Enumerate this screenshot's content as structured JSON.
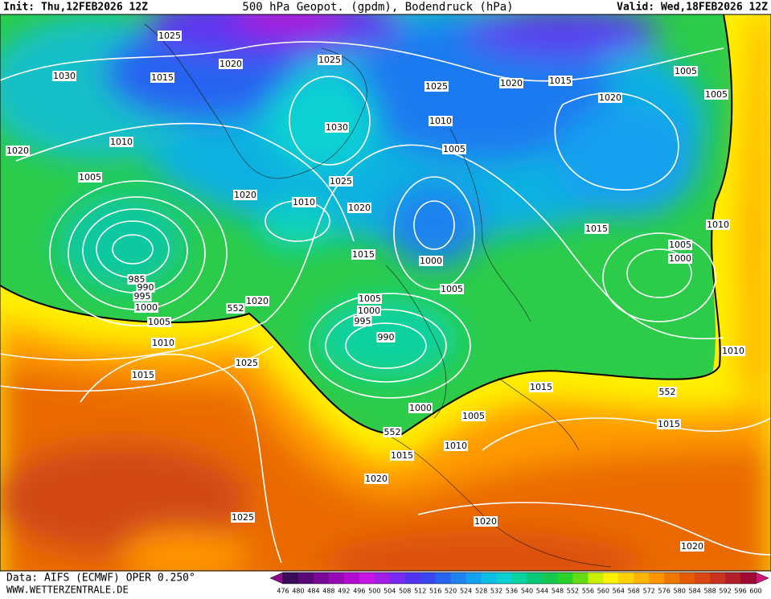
{
  "header": {
    "init": "Init: Thu,12FEB2026 12Z",
    "title": "500 hPa Geopot. (gpdm), Bodendruck (hPa)",
    "valid": "Valid: Wed,18FEB2026 12Z"
  },
  "footer": {
    "data": "Data: AIFS (ECMWF) OPER 0.250°",
    "site": "WWW.WETTERZENTRALE.DE"
  },
  "isobar_labels": [
    1025,
    1020,
    1015,
    1030,
    1025,
    1025,
    1020,
    1015,
    1005,
    1005,
    1020,
    1010,
    1030,
    1005,
    1020,
    1010,
    1005,
    1025,
    1020,
    1010,
    1020,
    1015,
    1010,
    1005,
    1000,
    1015,
    1000,
    985,
    990,
    995,
    1000,
    1005,
    1000,
    995,
    990,
    1005,
    1020,
    552,
    1005,
    1010,
    1015,
    1025,
    1010,
    1015,
    552,
    1015,
    1000,
    1005,
    552,
    1010,
    1015,
    1020,
    1025,
    1020,
    1020
  ],
  "colorbar": {
    "labels": [
      476,
      480,
      484,
      488,
      492,
      496,
      500,
      504,
      508,
      512,
      516,
      520,
      524,
      528,
      532,
      536,
      540,
      544,
      548,
      552,
      556,
      560,
      564,
      568,
      572,
      576,
      580,
      584,
      588,
      592,
      596,
      600
    ],
    "colors": [
      "#3c0a5a",
      "#5a0a78",
      "#780a96",
      "#960ab4",
      "#b40ad2",
      "#c814e6",
      "#a01ee6",
      "#7828f0",
      "#5032f0",
      "#3c46f0",
      "#2864f0",
      "#1e82f0",
      "#14a0f0",
      "#0abee6",
      "#0ad2d2",
      "#0ad2a0",
      "#0ac878",
      "#14c850",
      "#28d228",
      "#64dc14",
      "#c8f000",
      "#fff000",
      "#ffd200",
      "#ffb400",
      "#ff9600",
      "#f07800",
      "#e65a00",
      "#dc4614",
      "#c8321e",
      "#b41e28",
      "#a00a32"
    ]
  }
}
